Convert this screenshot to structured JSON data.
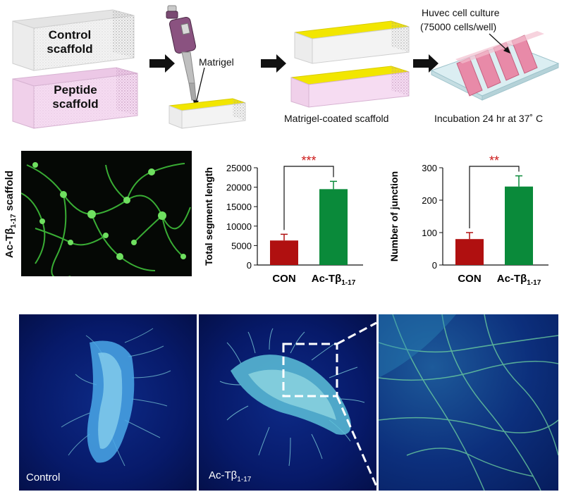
{
  "workflow": {
    "control_scaffold_label": "Control scaffold",
    "peptide_scaffold_label": "Peptide scaffold",
    "matrigel_label": "Matrigel",
    "coated_label": "Matrigel-coated scaffold",
    "culture_label_line1": "Huvec cell culture",
    "culture_label_line2": "(75000 cells/well)",
    "incubation_label": "Incubation 24 hr at 37˚ C"
  },
  "micrograph": {
    "side_label": "Ac-Tβ",
    "side_label_sub": "1-17",
    "side_label_suffix": " scaffold"
  },
  "chart_data": [
    {
      "type": "bar",
      "categories": [
        "CON",
        "Ac-Tβ1-17"
      ],
      "values": [
        6300,
        19500
      ],
      "errors": [
        1600,
        2000
      ],
      "ylabel": "Total segment length",
      "ylim": [
        0,
        25000
      ],
      "yticks": [
        "0",
        "5000",
        "10000",
        "15000",
        "20000",
        "25000"
      ],
      "significance": "***",
      "bar_colors": [
        "#b01010",
        "#0a8a3a"
      ],
      "grid": false
    },
    {
      "type": "bar",
      "categories": [
        "CON",
        "Ac-Tβ1-17"
      ],
      "values": [
        80,
        242
      ],
      "errors": [
        20,
        33
      ],
      "ylabel": "Number of junction",
      "ylim": [
        0,
        300
      ],
      "yticks": [
        "0",
        "100",
        "200",
        "300"
      ],
      "significance": "**",
      "bar_colors": [
        "#b01010",
        "#0a8a3a"
      ],
      "grid": false
    }
  ],
  "bottom_panels": {
    "control_label": "Control",
    "treated_label_main": "Ac-Tβ",
    "treated_label_sub": "1-17"
  },
  "colors": {
    "significance": "#cc1a1a",
    "control_scaffold": "#f0f0f0",
    "peptide_scaffold": "#f3d6ef",
    "matrigel": "#f2e600",
    "culture_well": "#e88aa8"
  }
}
